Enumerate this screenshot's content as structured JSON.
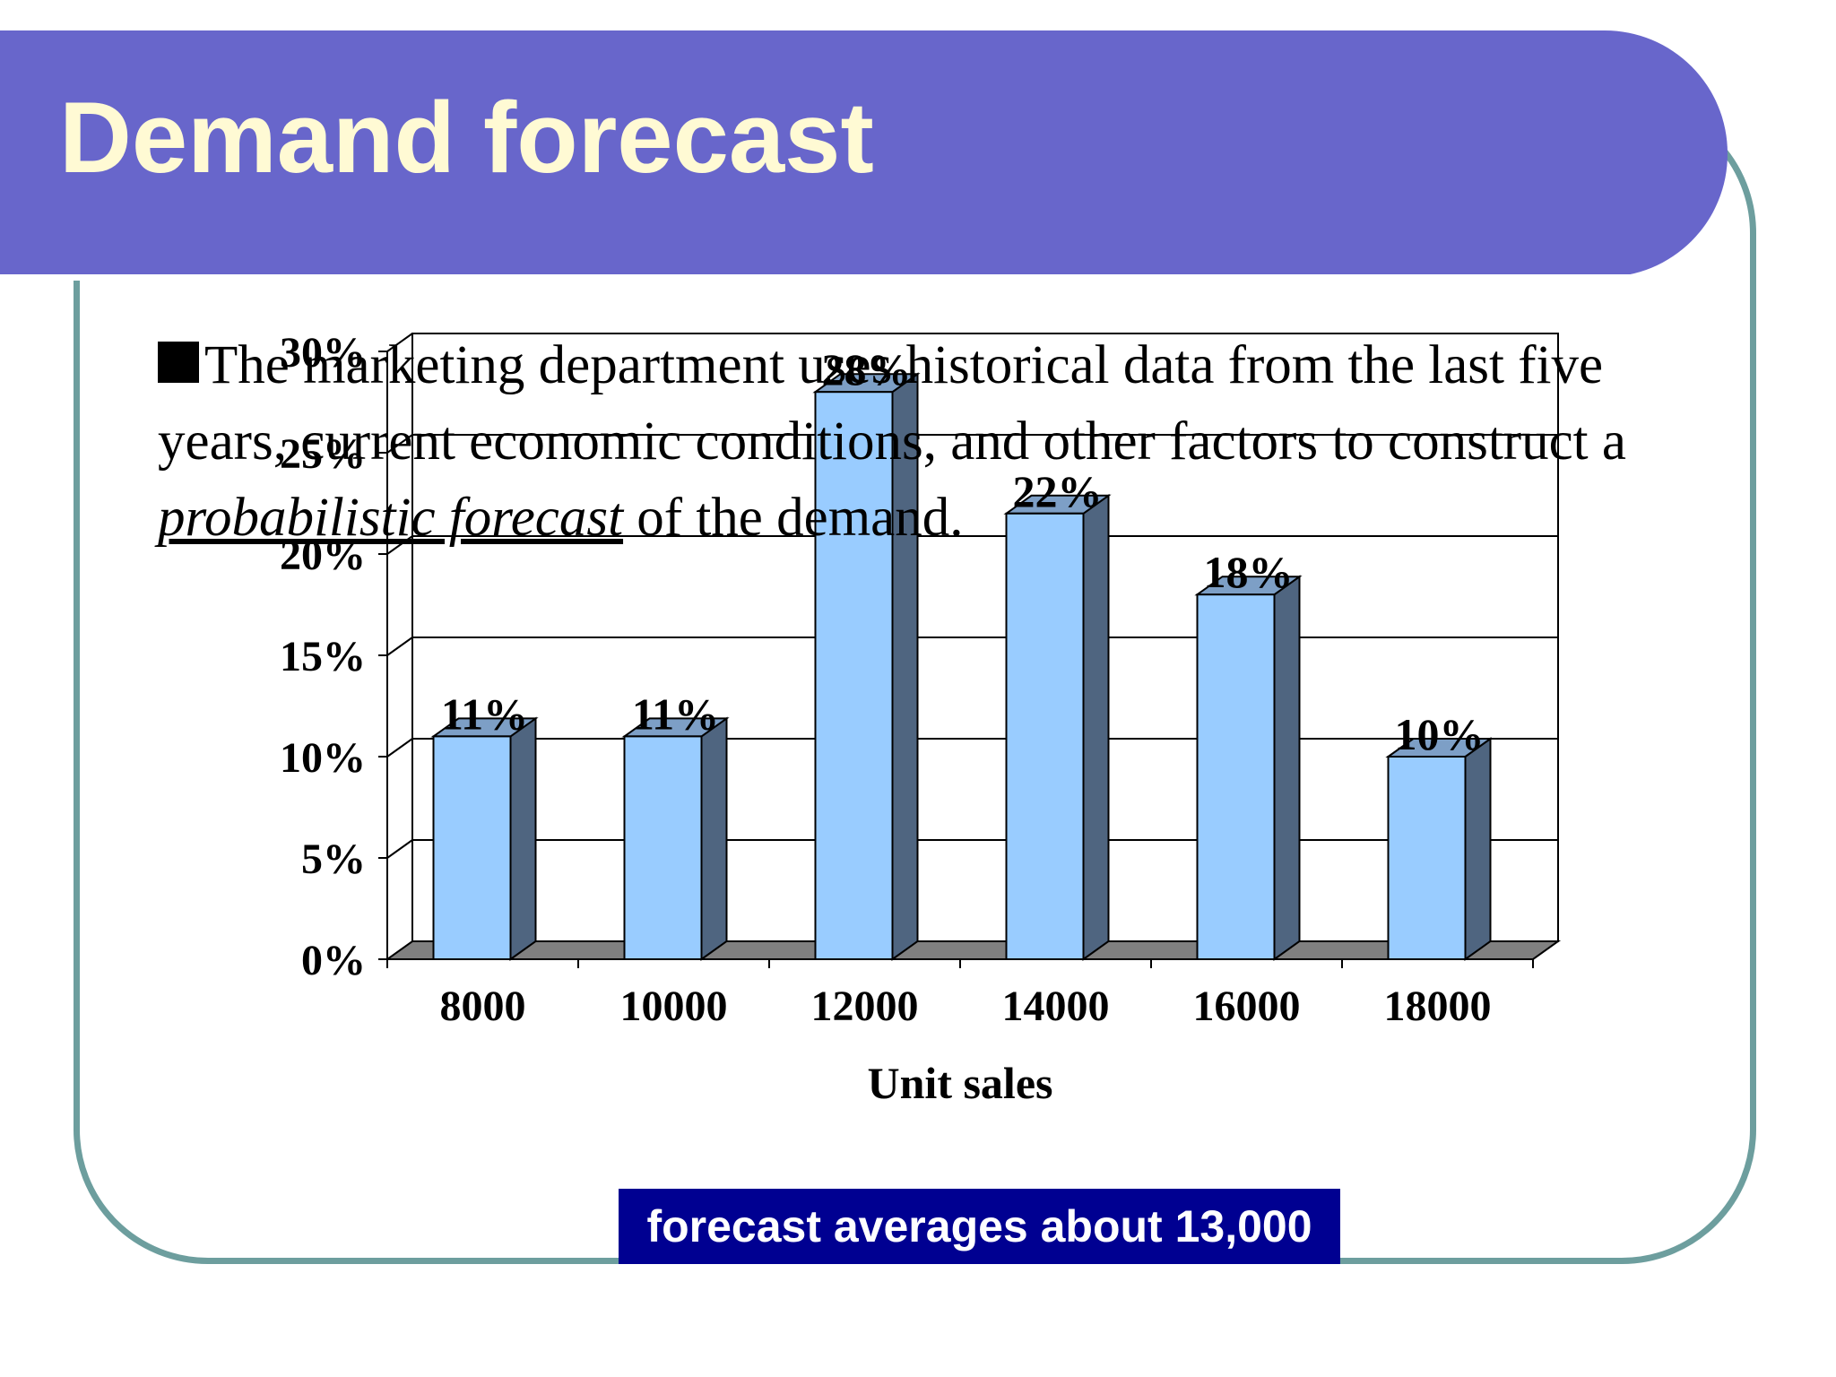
{
  "title": "Demand forecast",
  "bullet": {
    "text_start": "The marketing department uses historical data from the last five years, current economic conditions, and other factors to construct a ",
    "text_emphasis": "probabilistic forecast",
    "text_end": " of the demand."
  },
  "callout": "forecast averages about 13,000",
  "colors": {
    "title_bar": "#6866cb",
    "title_text": "#fffad4",
    "frame": "#6d9e9e",
    "bar_front": "#99ccff",
    "bar_side": "#4f6580",
    "bar_top": "#7d9fc6",
    "floor": "#808080",
    "callout_bg": "#000091"
  },
  "chart_data": {
    "type": "bar",
    "style": "3d-column",
    "categories": [
      "8000",
      "10000",
      "12000",
      "14000",
      "16000",
      "18000"
    ],
    "values": [
      11,
      11,
      28,
      22,
      18,
      10
    ],
    "data_labels": [
      "11%",
      "11%",
      "28%",
      "22%",
      "18%",
      "10%"
    ],
    "y_ticks": [
      "0%",
      "5%",
      "10%",
      "15%",
      "20%",
      "25%",
      "30%"
    ],
    "ylim": [
      0,
      30
    ],
    "xlabel": "Unit sales",
    "ylabel": "",
    "grid": true,
    "legend": false
  }
}
